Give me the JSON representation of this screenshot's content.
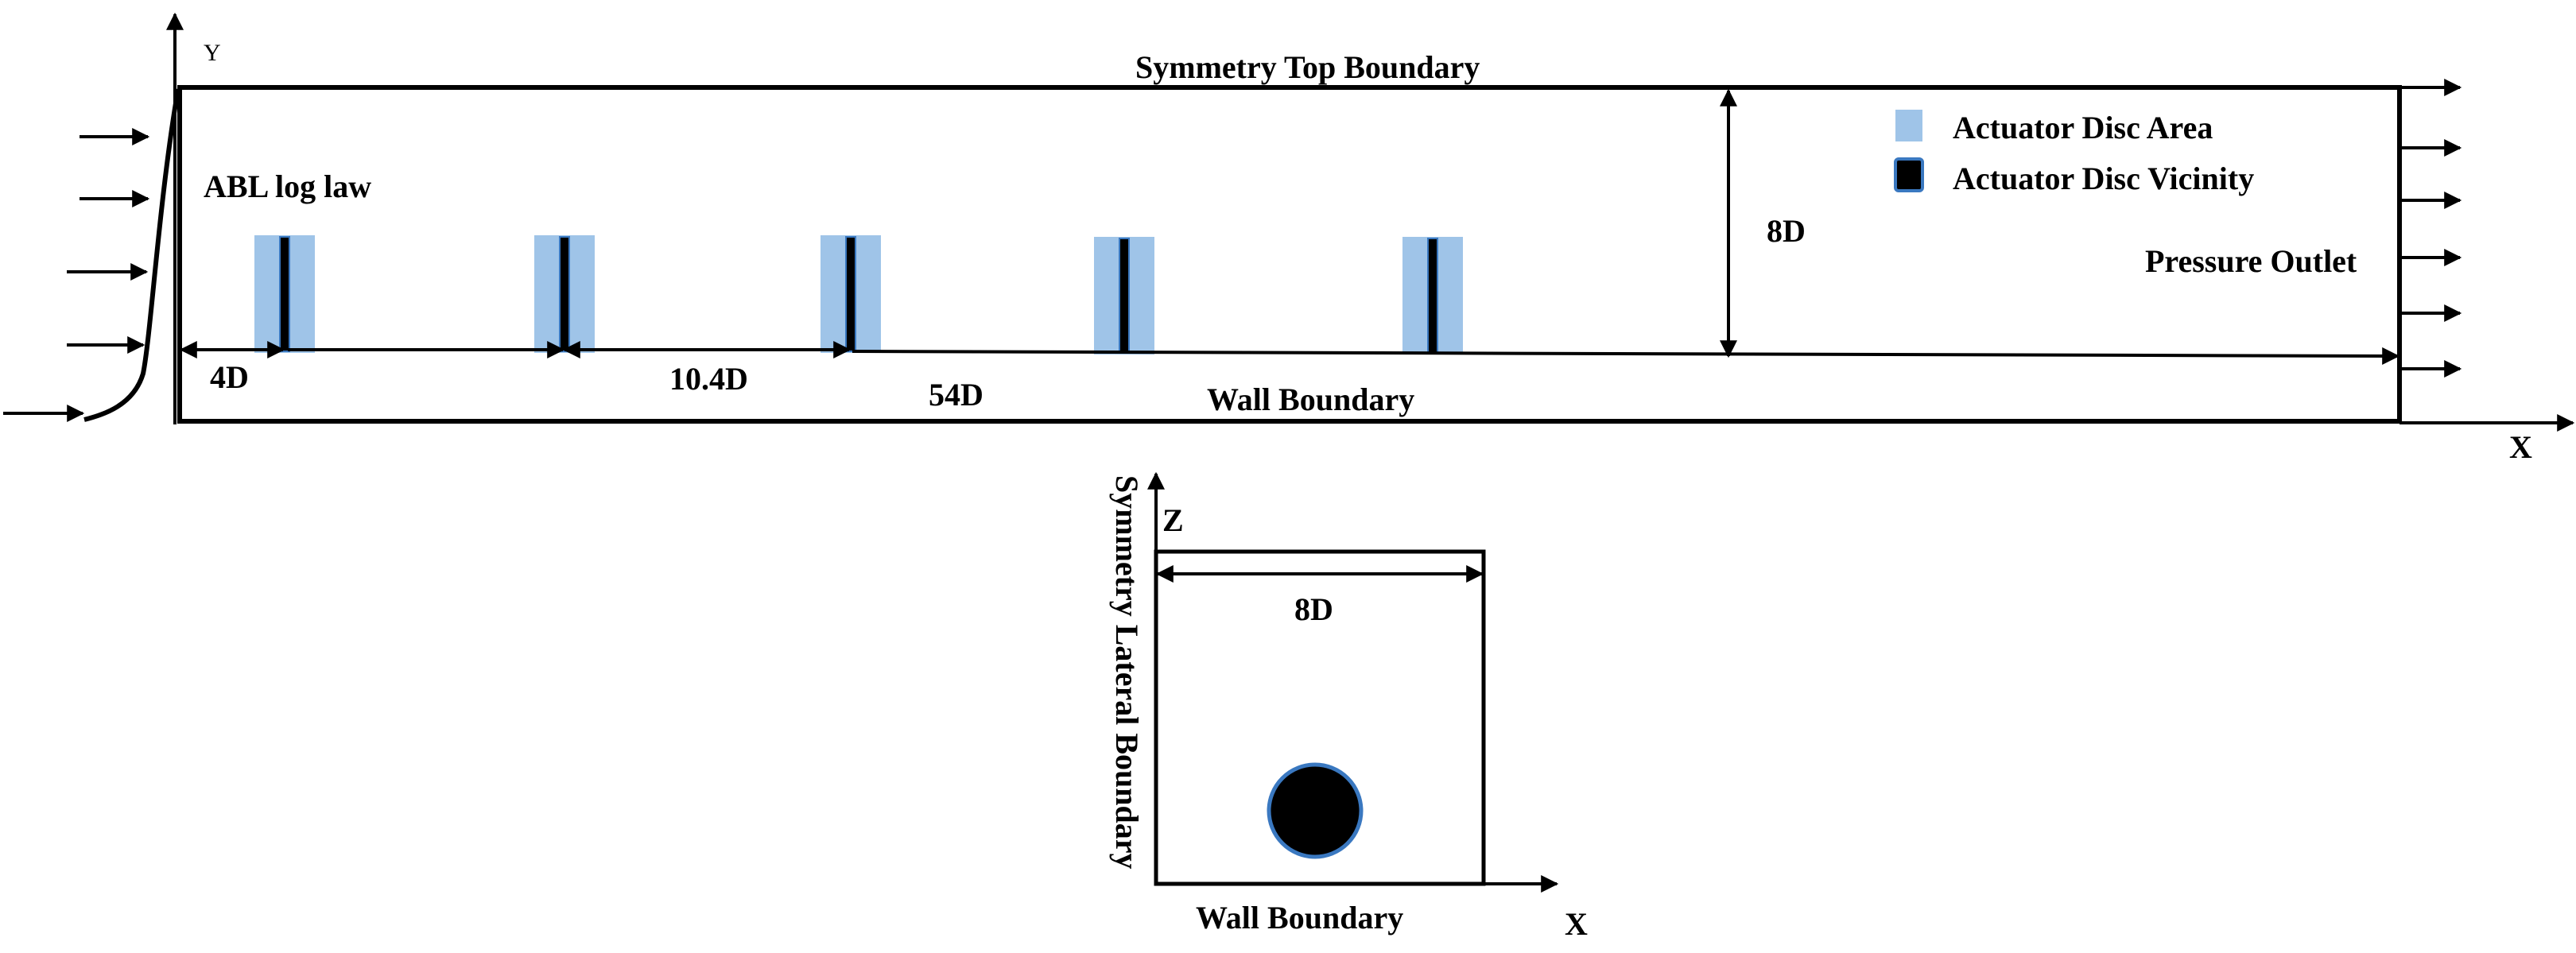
{
  "labels": {
    "top_boundary": "Symmetry Top Boundary",
    "inlet_profile": "ABL log law",
    "outlet": "Pressure Outlet",
    "wall_side": "Wall Boundary",
    "wall_front": "Wall Boundary",
    "lateral": "Symmetry Lateral Boundary"
  },
  "dimensions": {
    "inlet_offset": "4D",
    "spacing": "10.4D",
    "length": "54D",
    "height": "8D",
    "width": "8D"
  },
  "axes": {
    "side_y": "Y",
    "side_x": "X",
    "front_z": "Z",
    "front_x": "X"
  },
  "legend": {
    "area_label": "Actuator Disc Area",
    "vicinity_label": "Actuator Disc Vicinity"
  },
  "colors": {
    "disc_area": "#9fc4e8",
    "disc_vicinity": "#000000",
    "disc_border": "#3a78c0"
  },
  "turbine_count": 5
}
